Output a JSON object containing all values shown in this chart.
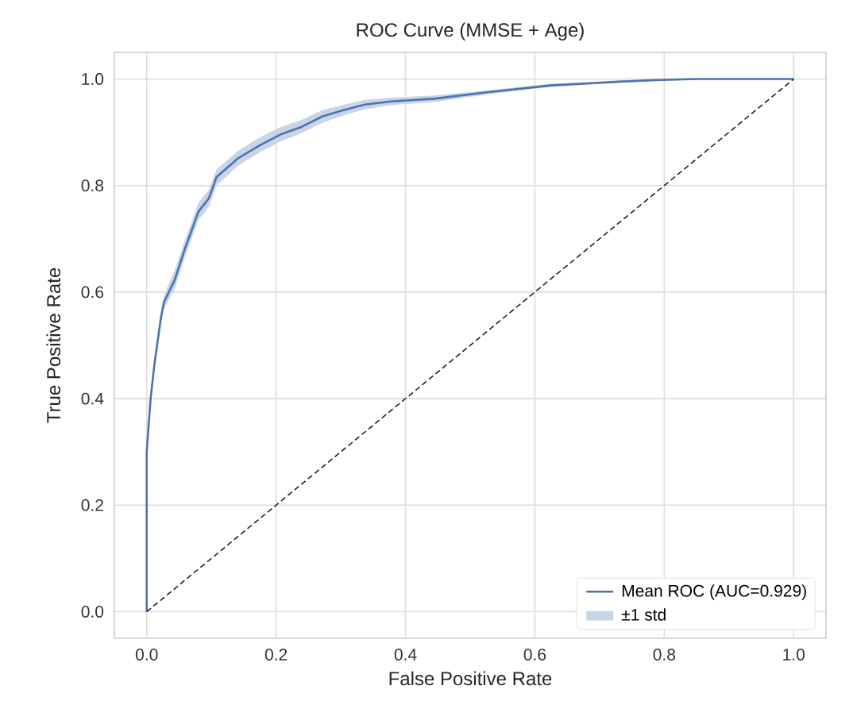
{
  "chart_data": {
    "type": "line",
    "title": "ROC Curve (MMSE + Age)",
    "xlabel": "False Positive Rate",
    "ylabel": "True Positive Rate",
    "annotations": [
      "±1 std"
    ],
    "xlim": [
      -0.05,
      1.05
    ],
    "ylim": [
      -0.05,
      1.05
    ],
    "xticks": [
      {
        "value": 0,
        "label": "0.0"
      },
      {
        "value": 0.2,
        "label": "0.2"
      },
      {
        "value": 0.4,
        "label": "0.4"
      },
      {
        "value": 0.6,
        "label": "0.6"
      },
      {
        "value": 0.8,
        "label": "0.8"
      },
      {
        "value": 1,
        "label": "1.0"
      }
    ],
    "yticks": [
      {
        "value": 0,
        "label": "0.0"
      },
      {
        "value": 0.2,
        "label": "0.2"
      },
      {
        "value": 0.4,
        "label": "0.4"
      },
      {
        "value": 0.6,
        "label": "0.6"
      },
      {
        "value": 0.8,
        "label": "0.8"
      },
      {
        "value": 1,
        "label": "1.0"
      }
    ],
    "grid": true,
    "legend": "bottom right",
    "marker": "none",
    "series": [
      {
        "name": "Mean ROC (AUC=0.929)",
        "color": "#4c72b0",
        "line_style": "solid",
        "x": [
          0,
          0,
          0.006,
          0.012,
          0.022,
          0.027,
          0.043,
          0.059,
          0.08,
          0.096,
          0.108,
          0.141,
          0.174,
          0.207,
          0.239,
          0.272,
          0.305,
          0.337,
          0.378,
          0.444,
          0.526,
          0.624,
          0.73,
          0.787,
          0.85,
          1
        ],
        "values": [
          0,
          0.3,
          0.4,
          0.465,
          0.552,
          0.582,
          0.622,
          0.681,
          0.751,
          0.776,
          0.816,
          0.851,
          0.875,
          0.896,
          0.91,
          0.93,
          0.942,
          0.952,
          0.958,
          0.963,
          0.975,
          0.988,
          0.995,
          0.998,
          1,
          1
        ],
        "lower": [
          0,
          0.3,
          0.39,
          0.455,
          0.54,
          0.57,
          0.605,
          0.665,
          0.735,
          0.76,
          0.8,
          0.837,
          0.862,
          0.883,
          0.898,
          0.918,
          0.932,
          0.943,
          0.951,
          0.957,
          0.971,
          0.985,
          0.993,
          0.997,
          0.999,
          1
        ],
        "upper": [
          0,
          0.3,
          0.41,
          0.475,
          0.565,
          0.595,
          0.64,
          0.697,
          0.768,
          0.792,
          0.83,
          0.865,
          0.89,
          0.91,
          0.923,
          0.942,
          0.952,
          0.961,
          0.965,
          0.969,
          0.979,
          0.991,
          0.997,
          0.999,
          1,
          1
        ]
      },
      {
        "color": "#222222",
        "line_style": "dashed",
        "x": [
          0,
          1
        ],
        "values": [
          0,
          1
        ]
      }
    ]
  }
}
